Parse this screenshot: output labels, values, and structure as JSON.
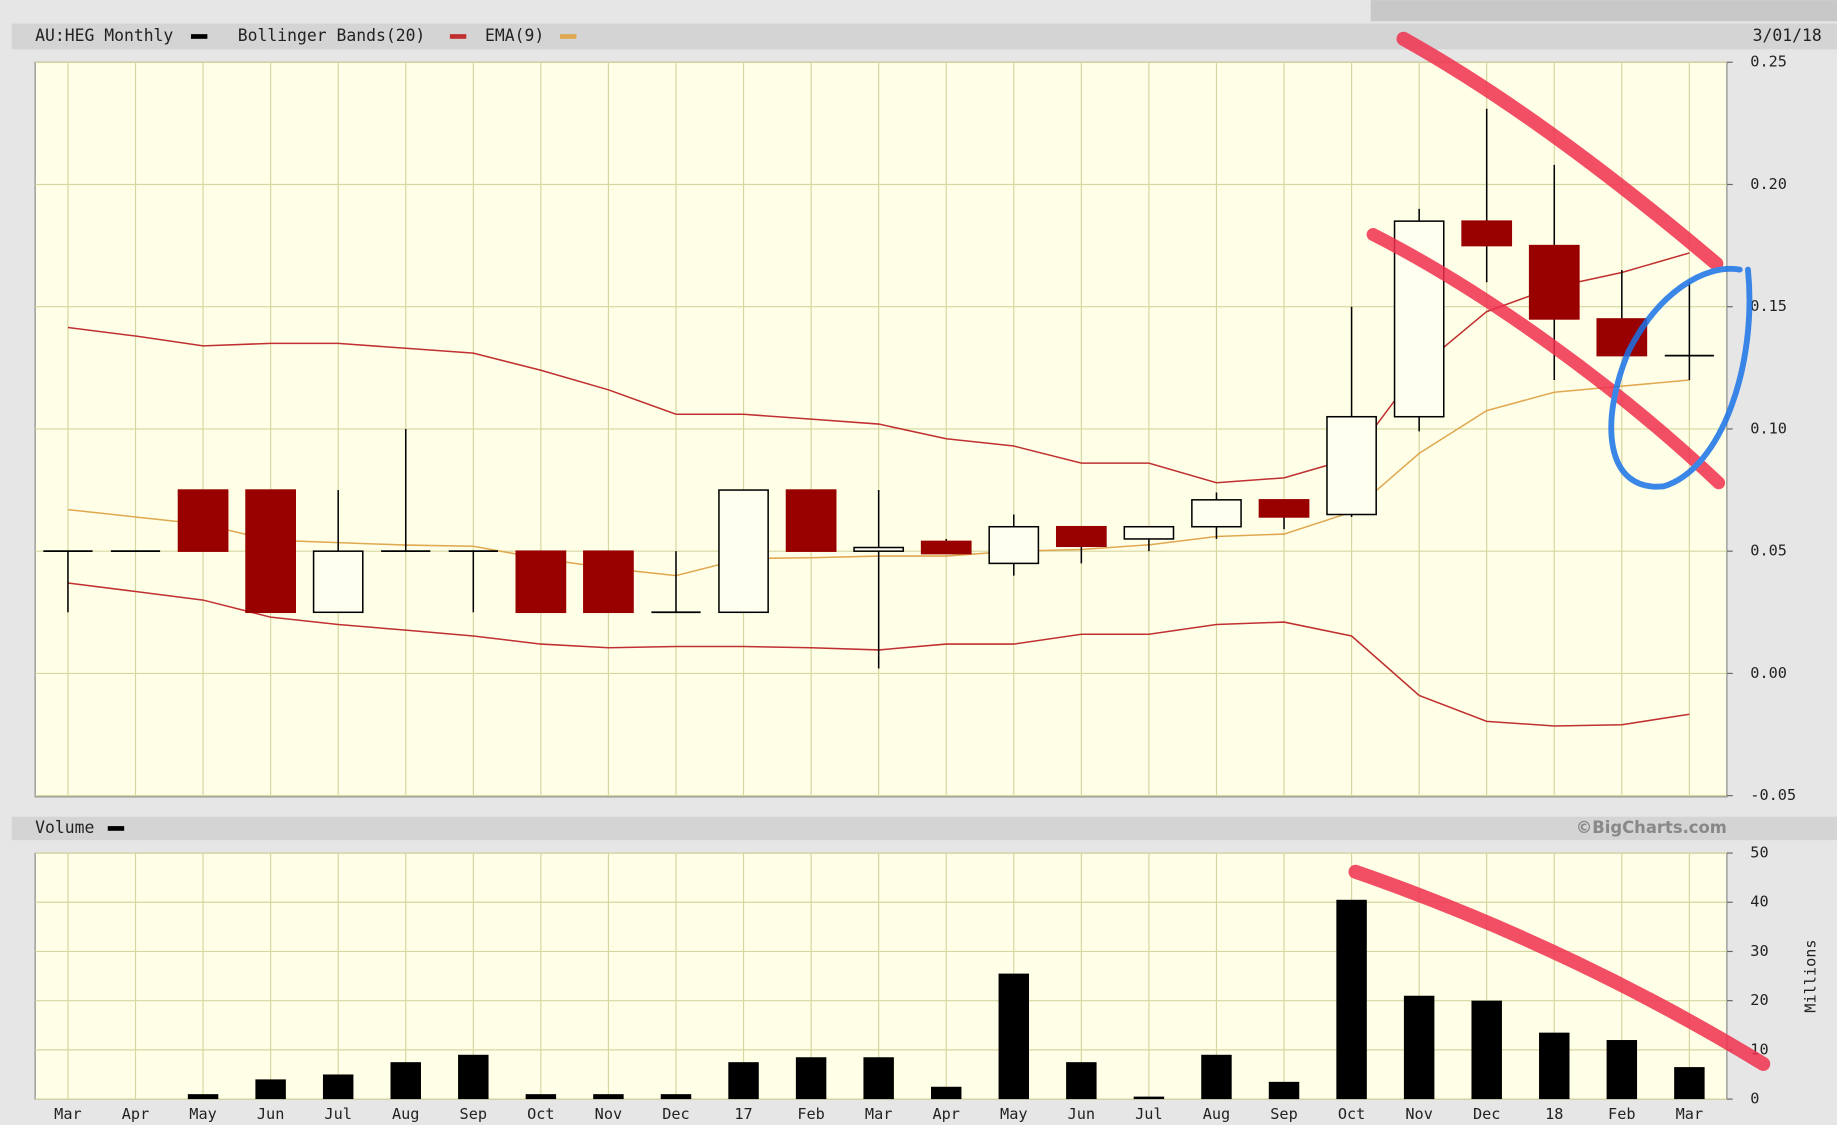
{
  "chart_data": [
    {
      "type": "candlestick",
      "title": "AU:HEG Monthly",
      "date": "3/01/18",
      "color": "#000000",
      "up_color": "#fffff0",
      "down_color": "#990000",
      "open": [
        0.05,
        0.05,
        0.075,
        0.075,
        0.025,
        0.05,
        0.05,
        0.05,
        0.05,
        0.025,
        0.025,
        0.075,
        0.05,
        0.054,
        0.045,
        0.06,
        0.055,
        0.06,
        0.071,
        0.065,
        0.105,
        0.185,
        0.175,
        0.145,
        0.13
      ],
      "high": [
        0.05,
        0.05,
        0.075,
        0.075,
        0.075,
        0.1,
        0.05,
        0.05,
        0.05,
        0.05,
        0.075,
        0.075,
        0.075,
        0.055,
        0.065,
        0.06,
        0.06,
        0.074,
        0.071,
        0.15,
        0.19,
        0.231,
        0.208,
        0.165,
        0.16
      ],
      "low": [
        0.025,
        0.05,
        0.05,
        0.025,
        0.025,
        0.05,
        0.025,
        0.025,
        0.025,
        0.025,
        0.025,
        0.05,
        0.002,
        0.049,
        0.04,
        0.045,
        0.05,
        0.055,
        0.059,
        0.064,
        0.099,
        0.16,
        0.12,
        0.13,
        0.12
      ],
      "close": [
        0.05,
        0.05,
        0.05,
        0.025,
        0.05,
        0.05,
        0.05,
        0.025,
        0.025,
        0.025,
        0.075,
        0.05,
        0.0515,
        0.049,
        0.06,
        0.052,
        0.06,
        0.071,
        0.064,
        0.105,
        0.185,
        0.175,
        0.145,
        0.13,
        0.13
      ],
      "bollinger": {
        "name": "Bollinger Bands(20)",
        "color": "#c03030",
        "upper": [
          0.1415,
          0.138,
          0.134,
          0.135,
          0.135,
          0.133,
          0.131,
          0.124,
          0.116,
          0.106,
          0.106,
          0.104,
          0.102,
          0.096,
          0.093,
          0.086,
          0.086,
          0.078,
          0.08,
          0.088,
          0.125,
          0.148,
          0.158,
          0.164,
          0.172
        ],
        "lower": [
          0.037,
          0.0335,
          0.03,
          0.023,
          0.02,
          0.0177,
          0.0153,
          0.012,
          0.0105,
          0.011,
          0.011,
          0.0105,
          0.0096,
          0.012,
          0.012,
          0.016,
          0.016,
          0.02,
          0.021,
          0.0153,
          -0.009,
          -0.0196,
          -0.0215,
          -0.021,
          -0.0167
        ]
      },
      "ema": {
        "name": "EMA(9)",
        "color": "#e0a850",
        "values": [
          0.067,
          0.064,
          0.061,
          0.0545,
          0.0535,
          0.0525,
          0.052,
          0.047,
          0.043,
          0.04,
          0.047,
          0.0473,
          0.048,
          0.048,
          0.05,
          0.0507,
          0.0526,
          0.056,
          0.057,
          0.066,
          0.09,
          0.1075,
          0.115,
          0.1175,
          0.12
        ]
      },
      "ylim": [
        -0.05,
        0.25
      ],
      "yticks": [
        {
          "value": -0.05,
          "label": "-0.05"
        },
        {
          "value": 0,
          "label": "0.00"
        },
        {
          "value": 0.05,
          "label": "0.05"
        },
        {
          "value": 0.1,
          "label": "0.10"
        },
        {
          "value": 0.15,
          "label": "0.15"
        },
        {
          "value": 0.2,
          "label": "0.20"
        },
        {
          "value": 0.25,
          "label": "0.25"
        }
      ],
      "grid": true
    },
    {
      "type": "bar",
      "title": "Volume",
      "credit": "©BigCharts.com",
      "y_label": "Millions",
      "color": "#000000",
      "categories": [
        "Mar",
        "Apr",
        "May",
        "Jun",
        "Jul",
        "Aug",
        "Sep",
        "Oct",
        "Nov",
        "Dec",
        "17",
        "Feb",
        "Mar",
        "Apr",
        "May",
        "Jun",
        "Jul",
        "Aug",
        "Sep",
        "Oct",
        "Nov",
        "Dec",
        "18",
        "Feb",
        "Mar"
      ],
      "values": [
        0,
        0,
        1,
        4,
        5,
        7.5,
        9,
        1,
        1,
        1,
        7.5,
        8.5,
        8.5,
        2.5,
        25.5,
        7.5,
        0.5,
        9,
        3.5,
        40.5,
        21,
        20,
        13.5,
        12,
        6.5
      ],
      "ylim": [
        0,
        50
      ],
      "yticks": [
        0,
        10,
        20,
        30,
        40,
        50
      ],
      "grid": true
    }
  ]
}
